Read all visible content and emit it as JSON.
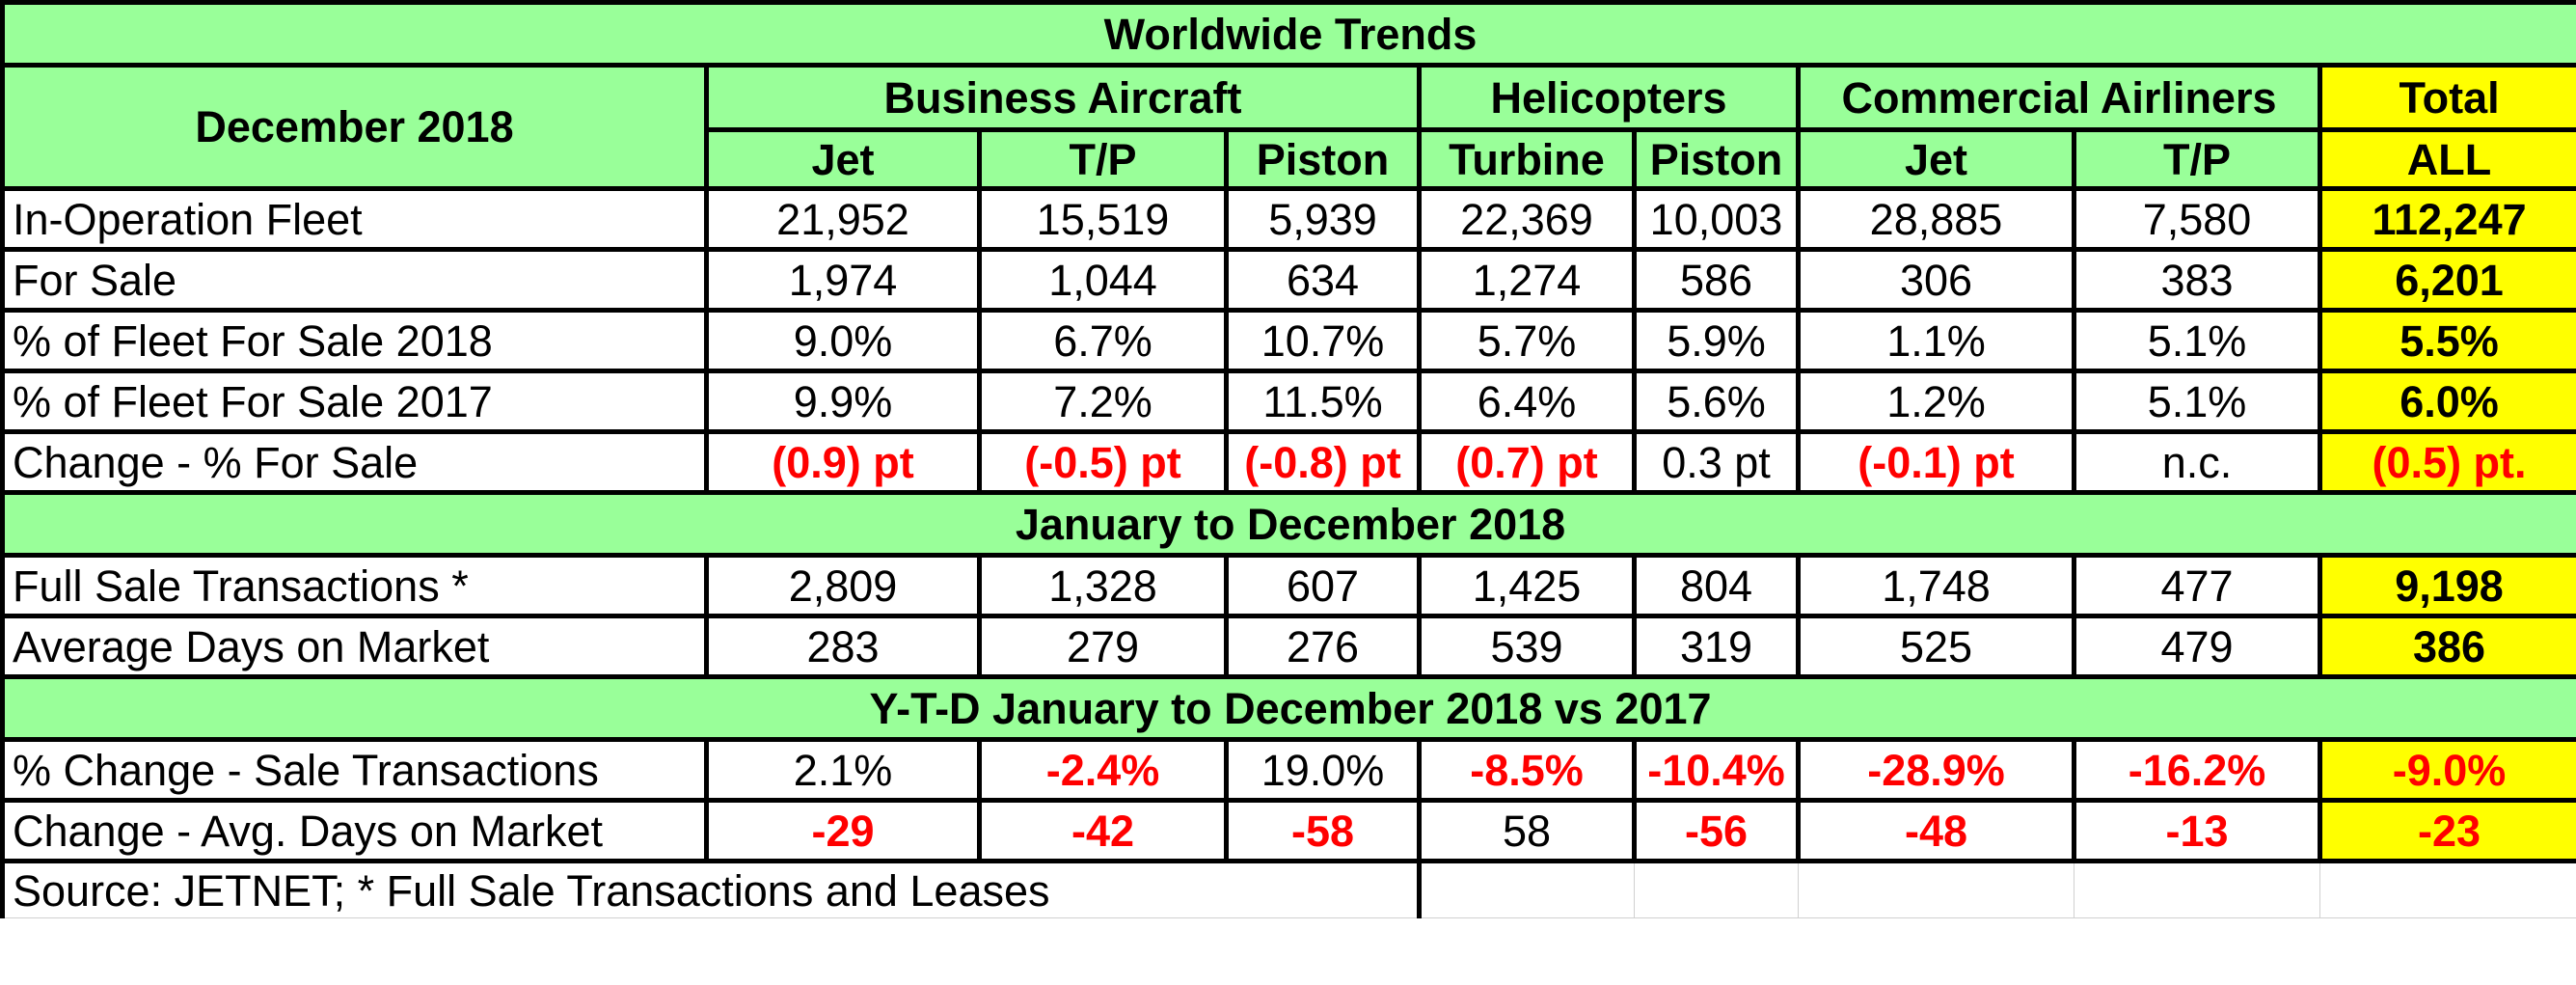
{
  "chart_data": {
    "type": "table",
    "title": "Worldwide Trends",
    "period_label": "December 2018",
    "groups": [
      {
        "name": "Business Aircraft",
        "columns": [
          "Jet",
          "T/P",
          "Piston"
        ]
      },
      {
        "name": "Helicopters",
        "columns": [
          "Turbine",
          "Piston"
        ]
      },
      {
        "name": "Commercial Airliners",
        "columns": [
          "Jet",
          "T/P"
        ]
      },
      {
        "name": "Total",
        "columns": [
          "ALL"
        ]
      }
    ],
    "sections": [
      {
        "title": "",
        "rows": [
          {
            "label": "In-Operation Fleet",
            "values": [
              "21,952",
              "15,519",
              "5,939",
              "22,369",
              "10,003",
              "28,885",
              "7,580",
              "112,247"
            ],
            "red": [
              false,
              false,
              false,
              false,
              false,
              false,
              false,
              false
            ]
          },
          {
            "label": "For Sale",
            "values": [
              "1,974",
              "1,044",
              "634",
              "1,274",
              "586",
              "306",
              "383",
              "6,201"
            ],
            "red": [
              false,
              false,
              false,
              false,
              false,
              false,
              false,
              false
            ]
          },
          {
            "label": "% of Fleet For Sale 2018",
            "values": [
              "9.0%",
              "6.7%",
              "10.7%",
              "5.7%",
              "5.9%",
              "1.1%",
              "5.1%",
              "5.5%"
            ],
            "red": [
              false,
              false,
              false,
              false,
              false,
              false,
              false,
              false
            ]
          },
          {
            "label": "% of Fleet For Sale 2017",
            "values": [
              "9.9%",
              "7.2%",
              "11.5%",
              "6.4%",
              "5.6%",
              "1.2%",
              "5.1%",
              "6.0%"
            ],
            "red": [
              false,
              false,
              false,
              false,
              false,
              false,
              false,
              false
            ]
          },
          {
            "label": "Change - % For Sale",
            "values": [
              "(0.9) pt",
              "(-0.5) pt",
              "(-0.8) pt",
              "(0.7) pt",
              "0.3 pt",
              "(-0.1) pt",
              "n.c.",
              "(0.5) pt."
            ],
            "red": [
              true,
              true,
              true,
              true,
              false,
              true,
              false,
              true
            ]
          }
        ]
      },
      {
        "title": "January to December 2018",
        "rows": [
          {
            "label": "Full Sale Transactions *",
            "values": [
              "2,809",
              "1,328",
              "607",
              "1,425",
              "804",
              "1,748",
              "477",
              "9,198"
            ],
            "red": [
              false,
              false,
              false,
              false,
              false,
              false,
              false,
              false
            ]
          },
          {
            "label": "Average Days on Market",
            "values": [
              "283",
              "279",
              "276",
              "539",
              "319",
              "525",
              "479",
              "386"
            ],
            "red": [
              false,
              false,
              false,
              false,
              false,
              false,
              false,
              false
            ]
          }
        ]
      },
      {
        "title": "Y-T-D January to December 2018 vs 2017",
        "rows": [
          {
            "label": "% Change  - Sale Transactions",
            "values": [
              "2.1%",
              "-2.4%",
              "19.0%",
              "-8.5%",
              "-10.4%",
              "-28.9%",
              "-16.2%",
              "-9.0%"
            ],
            "red": [
              false,
              true,
              false,
              true,
              true,
              true,
              true,
              true
            ]
          },
          {
            "label": "Change -  Avg. Days on Market",
            "values": [
              "-29",
              "-42",
              "-58",
              "58",
              "-56",
              "-48",
              "-13",
              "-23"
            ],
            "red": [
              true,
              true,
              true,
              false,
              true,
              true,
              true,
              true
            ]
          }
        ]
      }
    ],
    "footnote": "Source: JETNET; * Full Sale Transactions and Leases"
  },
  "colors": {
    "header_fill": "#99ff99",
    "total_fill": "#ffff00",
    "negative_text": "#ff0000",
    "border": "#000000"
  }
}
